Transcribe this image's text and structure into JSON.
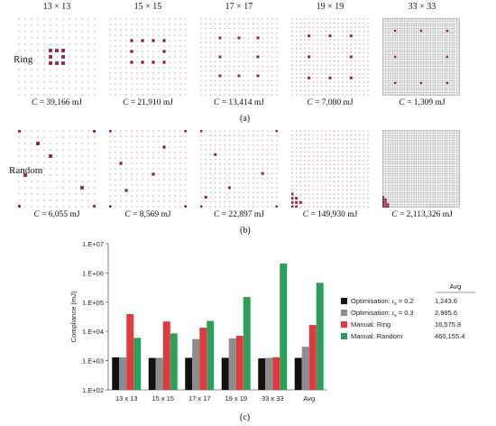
{
  "grid_sizes": [
    "13 × 13",
    "15 × 15",
    "17 × 17",
    "19 × 19",
    "33 × 33"
  ],
  "row_labels": {
    "ring": "Ring",
    "random": "Random"
  },
  "compliance_symbol": "C",
  "ring_compliance": [
    "= 39,166 mJ",
    "= 21,910 mJ",
    "= 13,414 mJ",
    "= 7,080 mJ",
    "= 1,309 mJ"
  ],
  "random_compliance": [
    "= 6,055 mJ",
    "= 8,569 mJ",
    "= 22,897 mJ",
    "= 149,930 mJ",
    "= 2,113,326 mJ"
  ],
  "panel_labels": {
    "a": "(a)",
    "b": "(b)",
    "c": "(c)"
  },
  "colors": {
    "grid_dot": "#c9a9b5",
    "grid_line_dense": "#b4b4b4",
    "support": "#8e2446",
    "black": "#111111",
    "gray": "#8c8c8c",
    "red": "#e03a3e",
    "green": "#2aa05a"
  },
  "chart_data": {
    "type": "bar",
    "scale": "log",
    "ylabel": "Compliance (mJ)",
    "xlabel": "",
    "ylim": [
      100,
      10000000
    ],
    "yticks": [
      "1.E+02",
      "1.E+03",
      "1.E+04",
      "1.E+05",
      "1.E+06",
      "1.E+07"
    ],
    "categories": [
      "13 x 13",
      "15 x 15",
      "17 x 17",
      "19 x 19",
      "33 x 33",
      "Avg"
    ],
    "series": [
      {
        "name": "Optimisation: t_s = 0.2",
        "color": "#111111",
        "values": [
          1300,
          1240,
          1250,
          1250,
          1200,
          1243.6
        ]
      },
      {
        "name": "Optimisation: t_s = 0.3",
        "color": "#8c8c8c",
        "values": [
          1300,
          1250,
          5500,
          5800,
          1250,
          2985.6
        ]
      },
      {
        "name": "Manual: Ring",
        "color": "#e03a3e",
        "values": [
          39166,
          21910,
          13414,
          7080,
          1309,
          16575.8
        ]
      },
      {
        "name": "Manual: Random",
        "color": "#2aa05a",
        "values": [
          6055,
          8569,
          22897,
          149930,
          2113326,
          460155.4
        ]
      }
    ],
    "legend": {
      "entries": [
        {
          "prefix": "Optimisation: ",
          "var": "t",
          "sub": "s",
          "suffix": " = 0.2"
        },
        {
          "prefix": "Optimisation: ",
          "var": "t",
          "sub": "s",
          "suffix": " = 0.3"
        },
        {
          "prefix": "Manual: Ring",
          "var": "",
          "sub": "",
          "suffix": ""
        },
        {
          "prefix": "Manual: Random",
          "var": "",
          "sub": "",
          "suffix": ""
        }
      ],
      "avg_header": "Avg",
      "avg_values": [
        "1,243.6",
        "2,985.6",
        "16,575.8",
        "460,155.4"
      ]
    }
  }
}
